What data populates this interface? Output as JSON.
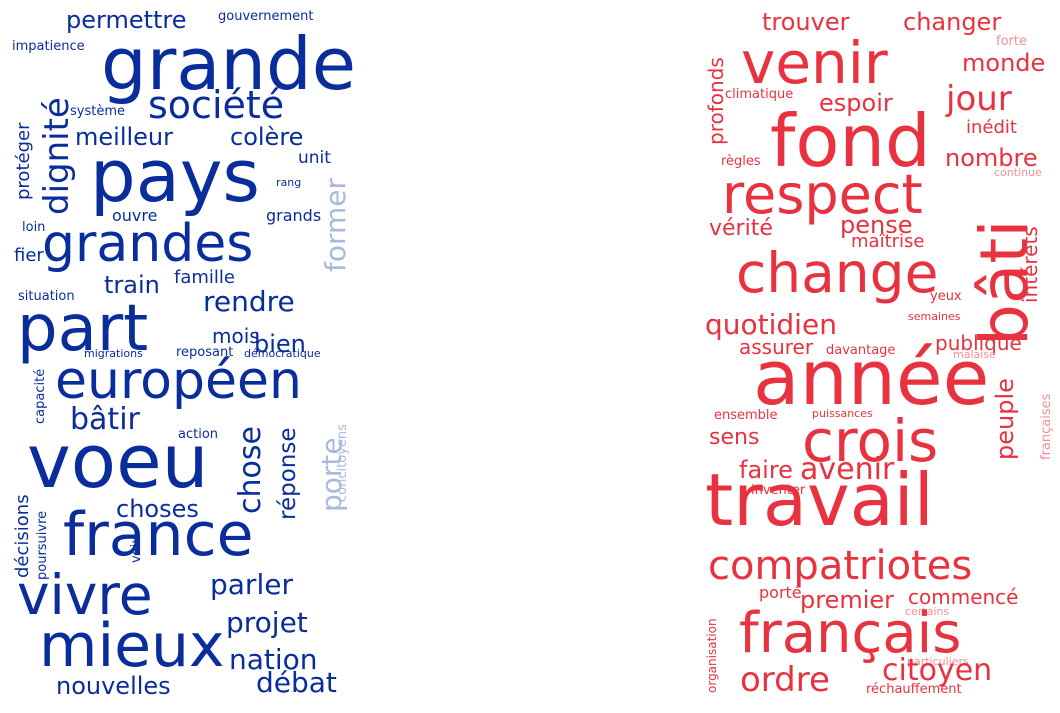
{
  "colors": {
    "blue_dark": "#0a2d9c",
    "blue_mid": "#1f46b4",
    "blue_light": "#a9b8de",
    "red_dark": "#e8323f",
    "red_light": "#f38f96"
  },
  "left_cloud": [
    {
      "text": "permettre",
      "color": "blue_dark"
    },
    {
      "text": "gouvernement",
      "color": "blue_dark"
    },
    {
      "text": "impatience",
      "color": "blue_dark"
    },
    {
      "text": "grande",
      "color": "blue_dark"
    },
    {
      "text": "dignité",
      "color": "blue_dark"
    },
    {
      "text": "société",
      "color": "blue_dark"
    },
    {
      "text": "système",
      "color": "blue_dark"
    },
    {
      "text": "protéger",
      "color": "blue_dark"
    },
    {
      "text": "meilleur",
      "color": "blue_dark"
    },
    {
      "text": "colère",
      "color": "blue_dark"
    },
    {
      "text": "pays",
      "color": "blue_dark"
    },
    {
      "text": "unit",
      "color": "blue_dark"
    },
    {
      "text": "rang",
      "color": "blue_dark"
    },
    {
      "text": "former",
      "color": "blue_light"
    },
    {
      "text": "ouvre",
      "color": "blue_dark"
    },
    {
      "text": "grands",
      "color": "blue_dark"
    },
    {
      "text": "loin",
      "color": "blue_dark"
    },
    {
      "text": "grandes",
      "color": "blue_dark"
    },
    {
      "text": "fier",
      "color": "blue_dark"
    },
    {
      "text": "famille",
      "color": "blue_dark"
    },
    {
      "text": "train",
      "color": "blue_dark"
    },
    {
      "text": "situation",
      "color": "blue_dark"
    },
    {
      "text": "part",
      "color": "blue_dark"
    },
    {
      "text": "rendre",
      "color": "blue_dark"
    },
    {
      "text": "mois",
      "color": "blue_dark"
    },
    {
      "text": "bien",
      "color": "blue_dark"
    },
    {
      "text": "migrations",
      "color": "blue_dark"
    },
    {
      "text": "reposant",
      "color": "blue_dark"
    },
    {
      "text": "démocratique",
      "color": "blue_dark"
    },
    {
      "text": "capacité",
      "color": "blue_dark"
    },
    {
      "text": "européen",
      "color": "blue_dark"
    },
    {
      "text": "bâtir",
      "color": "blue_dark"
    },
    {
      "text": "action",
      "color": "blue_dark"
    },
    {
      "text": "chose",
      "color": "blue_dark"
    },
    {
      "text": "réponse",
      "color": "blue_dark"
    },
    {
      "text": "porte",
      "color": "blue_light"
    },
    {
      "text": "concitoyens",
      "color": "blue_light"
    },
    {
      "text": "voeu",
      "color": "blue_dark"
    },
    {
      "text": "décisions",
      "color": "blue_dark"
    },
    {
      "text": "poursuivre",
      "color": "blue_dark"
    },
    {
      "text": "choses",
      "color": "blue_dark"
    },
    {
      "text": "voix",
      "color": "blue_dark"
    },
    {
      "text": "france",
      "color": "blue_dark"
    },
    {
      "text": "vivre",
      "color": "blue_dark"
    },
    {
      "text": "parler",
      "color": "blue_dark"
    },
    {
      "text": "projet",
      "color": "blue_dark"
    },
    {
      "text": "mieux",
      "color": "blue_dark"
    },
    {
      "text": "nation",
      "color": "blue_dark"
    },
    {
      "text": "nouvelles",
      "color": "blue_dark"
    },
    {
      "text": "débat",
      "color": "blue_dark"
    }
  ],
  "right_cloud": [
    {
      "text": "trouver",
      "color": "red_dark"
    },
    {
      "text": "changer",
      "color": "red_dark"
    },
    {
      "text": "forte",
      "color": "red_light"
    },
    {
      "text": "profonds",
      "color": "red_dark"
    },
    {
      "text": "venir",
      "color": "red_dark"
    },
    {
      "text": "monde",
      "color": "red_dark"
    },
    {
      "text": "climatique",
      "color": "red_dark"
    },
    {
      "text": "espoir",
      "color": "red_dark"
    },
    {
      "text": "jour",
      "color": "red_dark"
    },
    {
      "text": "fond",
      "color": "red_dark"
    },
    {
      "text": "inédit",
      "color": "red_dark"
    },
    {
      "text": "règles",
      "color": "red_dark"
    },
    {
      "text": "nombre",
      "color": "red_dark"
    },
    {
      "text": "continue",
      "color": "red_light"
    },
    {
      "text": "respect",
      "color": "red_dark"
    },
    {
      "text": "vérité",
      "color": "red_dark"
    },
    {
      "text": "pense",
      "color": "red_dark"
    },
    {
      "text": "intérêts",
      "color": "red_dark"
    },
    {
      "text": "maîtrise",
      "color": "red_dark"
    },
    {
      "text": "change",
      "color": "red_dark"
    },
    {
      "text": "bâti",
      "color": "red_dark"
    },
    {
      "text": "yeux",
      "color": "red_dark"
    },
    {
      "text": "semaines",
      "color": "red_dark"
    },
    {
      "text": "quotidien",
      "color": "red_dark"
    },
    {
      "text": "assurer",
      "color": "red_dark"
    },
    {
      "text": "davantage",
      "color": "red_dark"
    },
    {
      "text": "publique",
      "color": "red_dark"
    },
    {
      "text": "malaise",
      "color": "red_light"
    },
    {
      "text": "année",
      "color": "red_dark"
    },
    {
      "text": "françaises",
      "color": "red_light"
    },
    {
      "text": "ensemble",
      "color": "red_dark"
    },
    {
      "text": "puissances",
      "color": "red_dark"
    },
    {
      "text": "peuple",
      "color": "red_dark"
    },
    {
      "text": "sens",
      "color": "red_dark"
    },
    {
      "text": "crois",
      "color": "red_dark"
    },
    {
      "text": "faire",
      "color": "red_dark"
    },
    {
      "text": "avenir",
      "color": "red_dark"
    },
    {
      "text": "inventer",
      "color": "red_dark"
    },
    {
      "text": "travail",
      "color": "red_dark"
    },
    {
      "text": "compatriotes",
      "color": "red_dark"
    },
    {
      "text": "porté",
      "color": "red_dark"
    },
    {
      "text": "premier",
      "color": "red_dark"
    },
    {
      "text": "commencé",
      "color": "red_dark"
    },
    {
      "text": "organisation",
      "color": "red_dark"
    },
    {
      "text": "certains",
      "color": "red_light"
    },
    {
      "text": "français",
      "color": "red_dark"
    },
    {
      "text": "particuliers",
      "color": "red_light"
    },
    {
      "text": "ordre",
      "color": "red_dark"
    },
    {
      "text": "citoyen",
      "color": "red_dark"
    },
    {
      "text": "réchauffement",
      "color": "red_dark"
    }
  ]
}
